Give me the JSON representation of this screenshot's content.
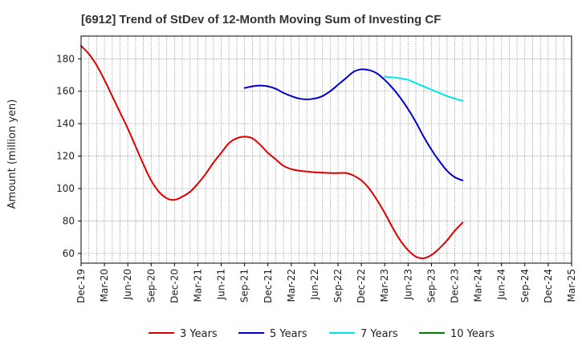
{
  "chart_data": {
    "type": "line",
    "title": "[6912]  Trend of StDev of 12-Month Moving Sum of Investing CF",
    "xlabel": "",
    "ylabel": "Amount (million yen)",
    "ylim": [
      54,
      194
    ],
    "yticks": [
      60,
      80,
      100,
      120,
      140,
      160,
      180
    ],
    "x_tick_labels": [
      "Dec-19",
      "Mar-20",
      "Jun-20",
      "Sep-20",
      "Dec-20",
      "Mar-21",
      "Jun-21",
      "Sep-21",
      "Dec-21",
      "Mar-22",
      "Jun-22",
      "Sep-22",
      "Dec-22",
      "Mar-23",
      "Jun-23",
      "Sep-23",
      "Dec-23",
      "Mar-24",
      "Jun-24",
      "Sep-24",
      "Dec-24",
      "Mar-25"
    ],
    "x_months": [
      "2019-12",
      "2020-01",
      "2020-02",
      "2020-03",
      "2020-04",
      "2020-05",
      "2020-06",
      "2020-07",
      "2020-08",
      "2020-09",
      "2020-10",
      "2020-11",
      "2020-12",
      "2021-01",
      "2021-02",
      "2021-03",
      "2021-04",
      "2021-05",
      "2021-06",
      "2021-07",
      "2021-08",
      "2021-09",
      "2021-10",
      "2021-11",
      "2021-12",
      "2022-01",
      "2022-02",
      "2022-03",
      "2022-04",
      "2022-05",
      "2022-06",
      "2022-07",
      "2022-08",
      "2022-09",
      "2022-10",
      "2022-11",
      "2022-12",
      "2023-01",
      "2023-02",
      "2023-03",
      "2023-04",
      "2023-05",
      "2023-06",
      "2023-07",
      "2023-08",
      "2023-09",
      "2023-10",
      "2023-11",
      "2023-12",
      "2024-01",
      "2024-02",
      "2024-03",
      "2024-04",
      "2024-05",
      "2024-06",
      "2024-07",
      "2024-08",
      "2024-09",
      "2024-10",
      "2024-11",
      "2024-12",
      "2025-01",
      "2025-02",
      "2025-03"
    ],
    "grid": true,
    "legend_position": "bottom",
    "series": [
      {
        "name": "3 Years",
        "color": "#dd0000",
        "values": [
          188,
          183,
          176,
          167,
          157,
          147,
          137,
          126,
          115,
          105,
          98,
          94,
          93,
          95,
          98,
          103,
          109,
          116,
          122,
          128,
          131,
          132,
          131,
          127,
          122,
          118,
          114,
          112,
          111,
          110.5,
          110,
          109.8,
          109.6,
          109.5,
          109.6,
          108,
          105,
          100,
          93,
          85,
          76,
          68,
          62,
          58,
          57,
          59,
          63,
          68,
          74,
          79,
          null,
          null,
          null,
          null,
          null,
          null,
          null,
          null,
          null,
          null,
          null,
          null,
          null,
          null
        ]
      },
      {
        "name": "5 Years",
        "color": "#0000cc",
        "values": [
          null,
          null,
          null,
          null,
          null,
          null,
          null,
          null,
          null,
          null,
          null,
          null,
          null,
          null,
          null,
          null,
          null,
          null,
          null,
          null,
          null,
          162,
          163,
          163.5,
          163,
          161.5,
          159,
          157,
          155.5,
          155,
          155.5,
          157,
          160,
          164,
          168,
          172,
          173.5,
          173,
          171,
          167,
          162,
          156,
          149,
          141,
          132,
          124,
          117,
          111,
          107,
          105,
          null,
          null,
          null,
          null,
          null,
          null,
          null,
          null,
          null,
          null,
          null,
          null,
          null,
          null
        ]
      },
      {
        "name": "7 Years",
        "color": "#00e5ee",
        "values": [
          null,
          null,
          null,
          null,
          null,
          null,
          null,
          null,
          null,
          null,
          null,
          null,
          null,
          null,
          null,
          null,
          null,
          null,
          null,
          null,
          null,
          null,
          null,
          null,
          null,
          null,
          null,
          null,
          null,
          null,
          null,
          null,
          null,
          null,
          null,
          null,
          null,
          null,
          null,
          169,
          168.5,
          168,
          167,
          165,
          163,
          161,
          159,
          157,
          155.5,
          154,
          null,
          null,
          null,
          null,
          null,
          null,
          null,
          null,
          null,
          null,
          null,
          null,
          null,
          null
        ]
      },
      {
        "name": "10 Years",
        "color": "#008000",
        "values": []
      }
    ]
  }
}
